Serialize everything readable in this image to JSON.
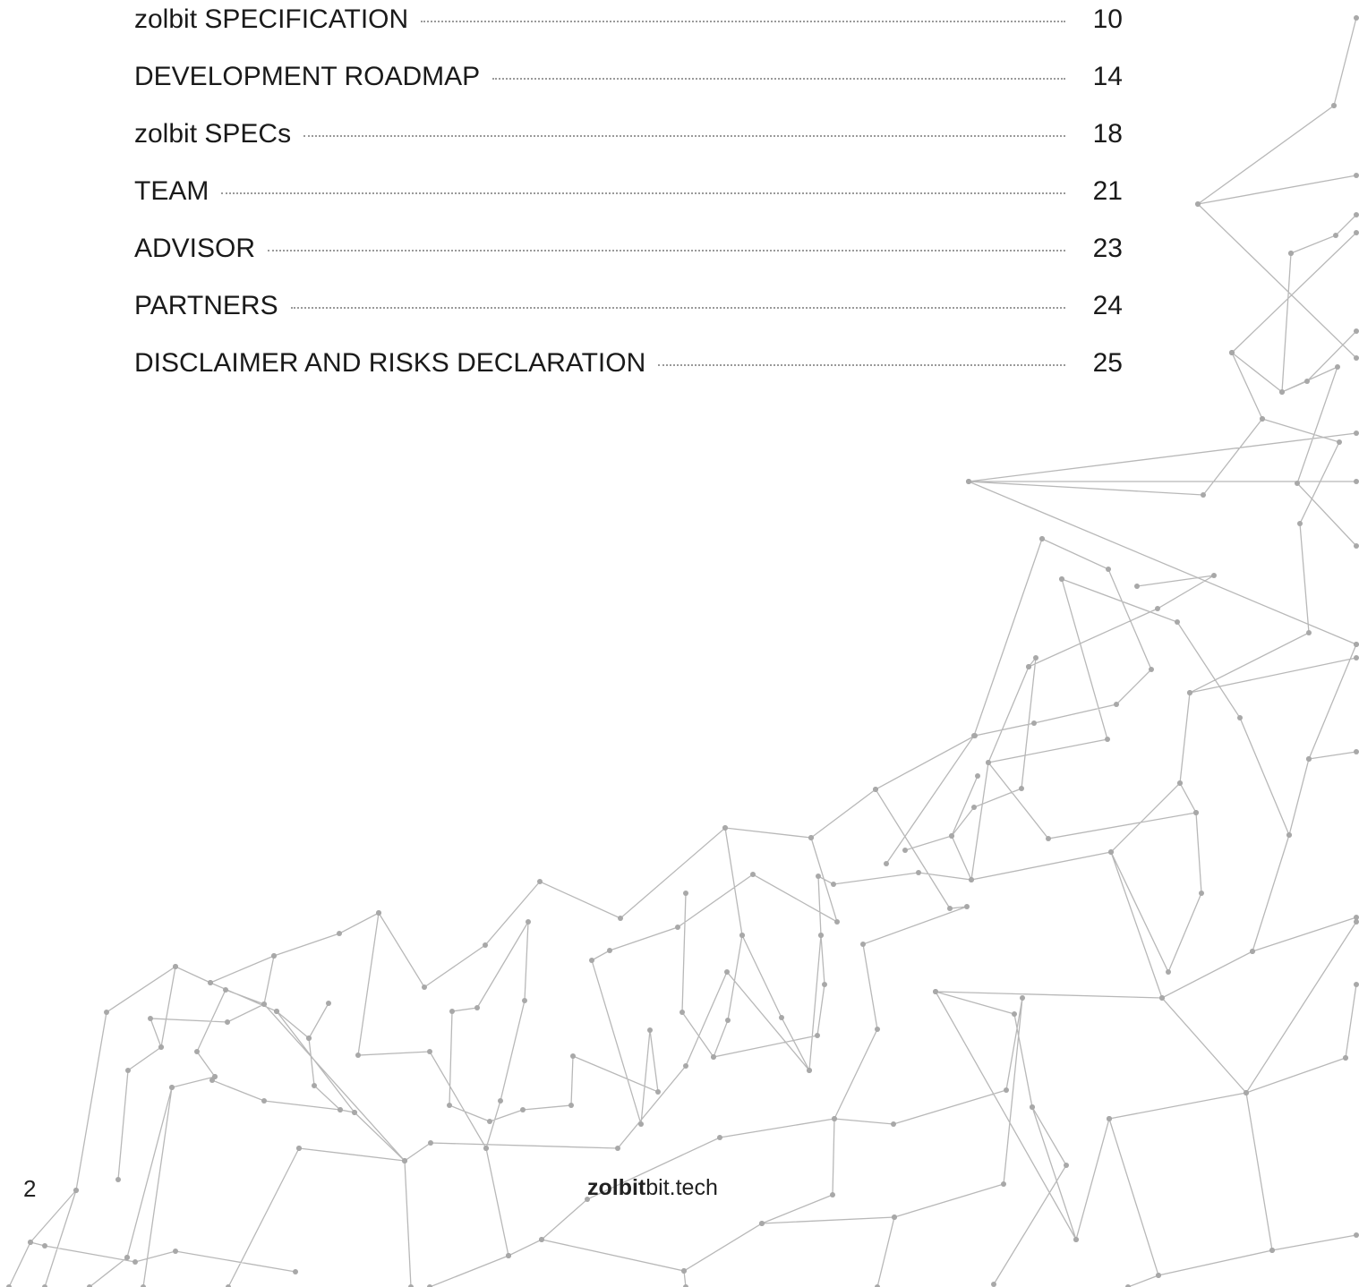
{
  "toc": {
    "entries": [
      {
        "title": "zolbit SPECIFICATION",
        "page": 10
      },
      {
        "title": "DEVELOPMENT ROADMAP",
        "page": 14
      },
      {
        "title": "zolbit SPECs",
        "page": 18
      },
      {
        "title": "TEAM",
        "page": 21
      },
      {
        "title": "ADVISOR",
        "page": 23
      },
      {
        "title": "PARTNERS",
        "page": 24
      },
      {
        "title": "DISCLAIMER AND RISKS DECLARATION",
        "page": 25
      }
    ]
  },
  "footer": {
    "page_number": 2,
    "site_brand": "zolbit",
    "site_suffix": "bit.tech"
  }
}
